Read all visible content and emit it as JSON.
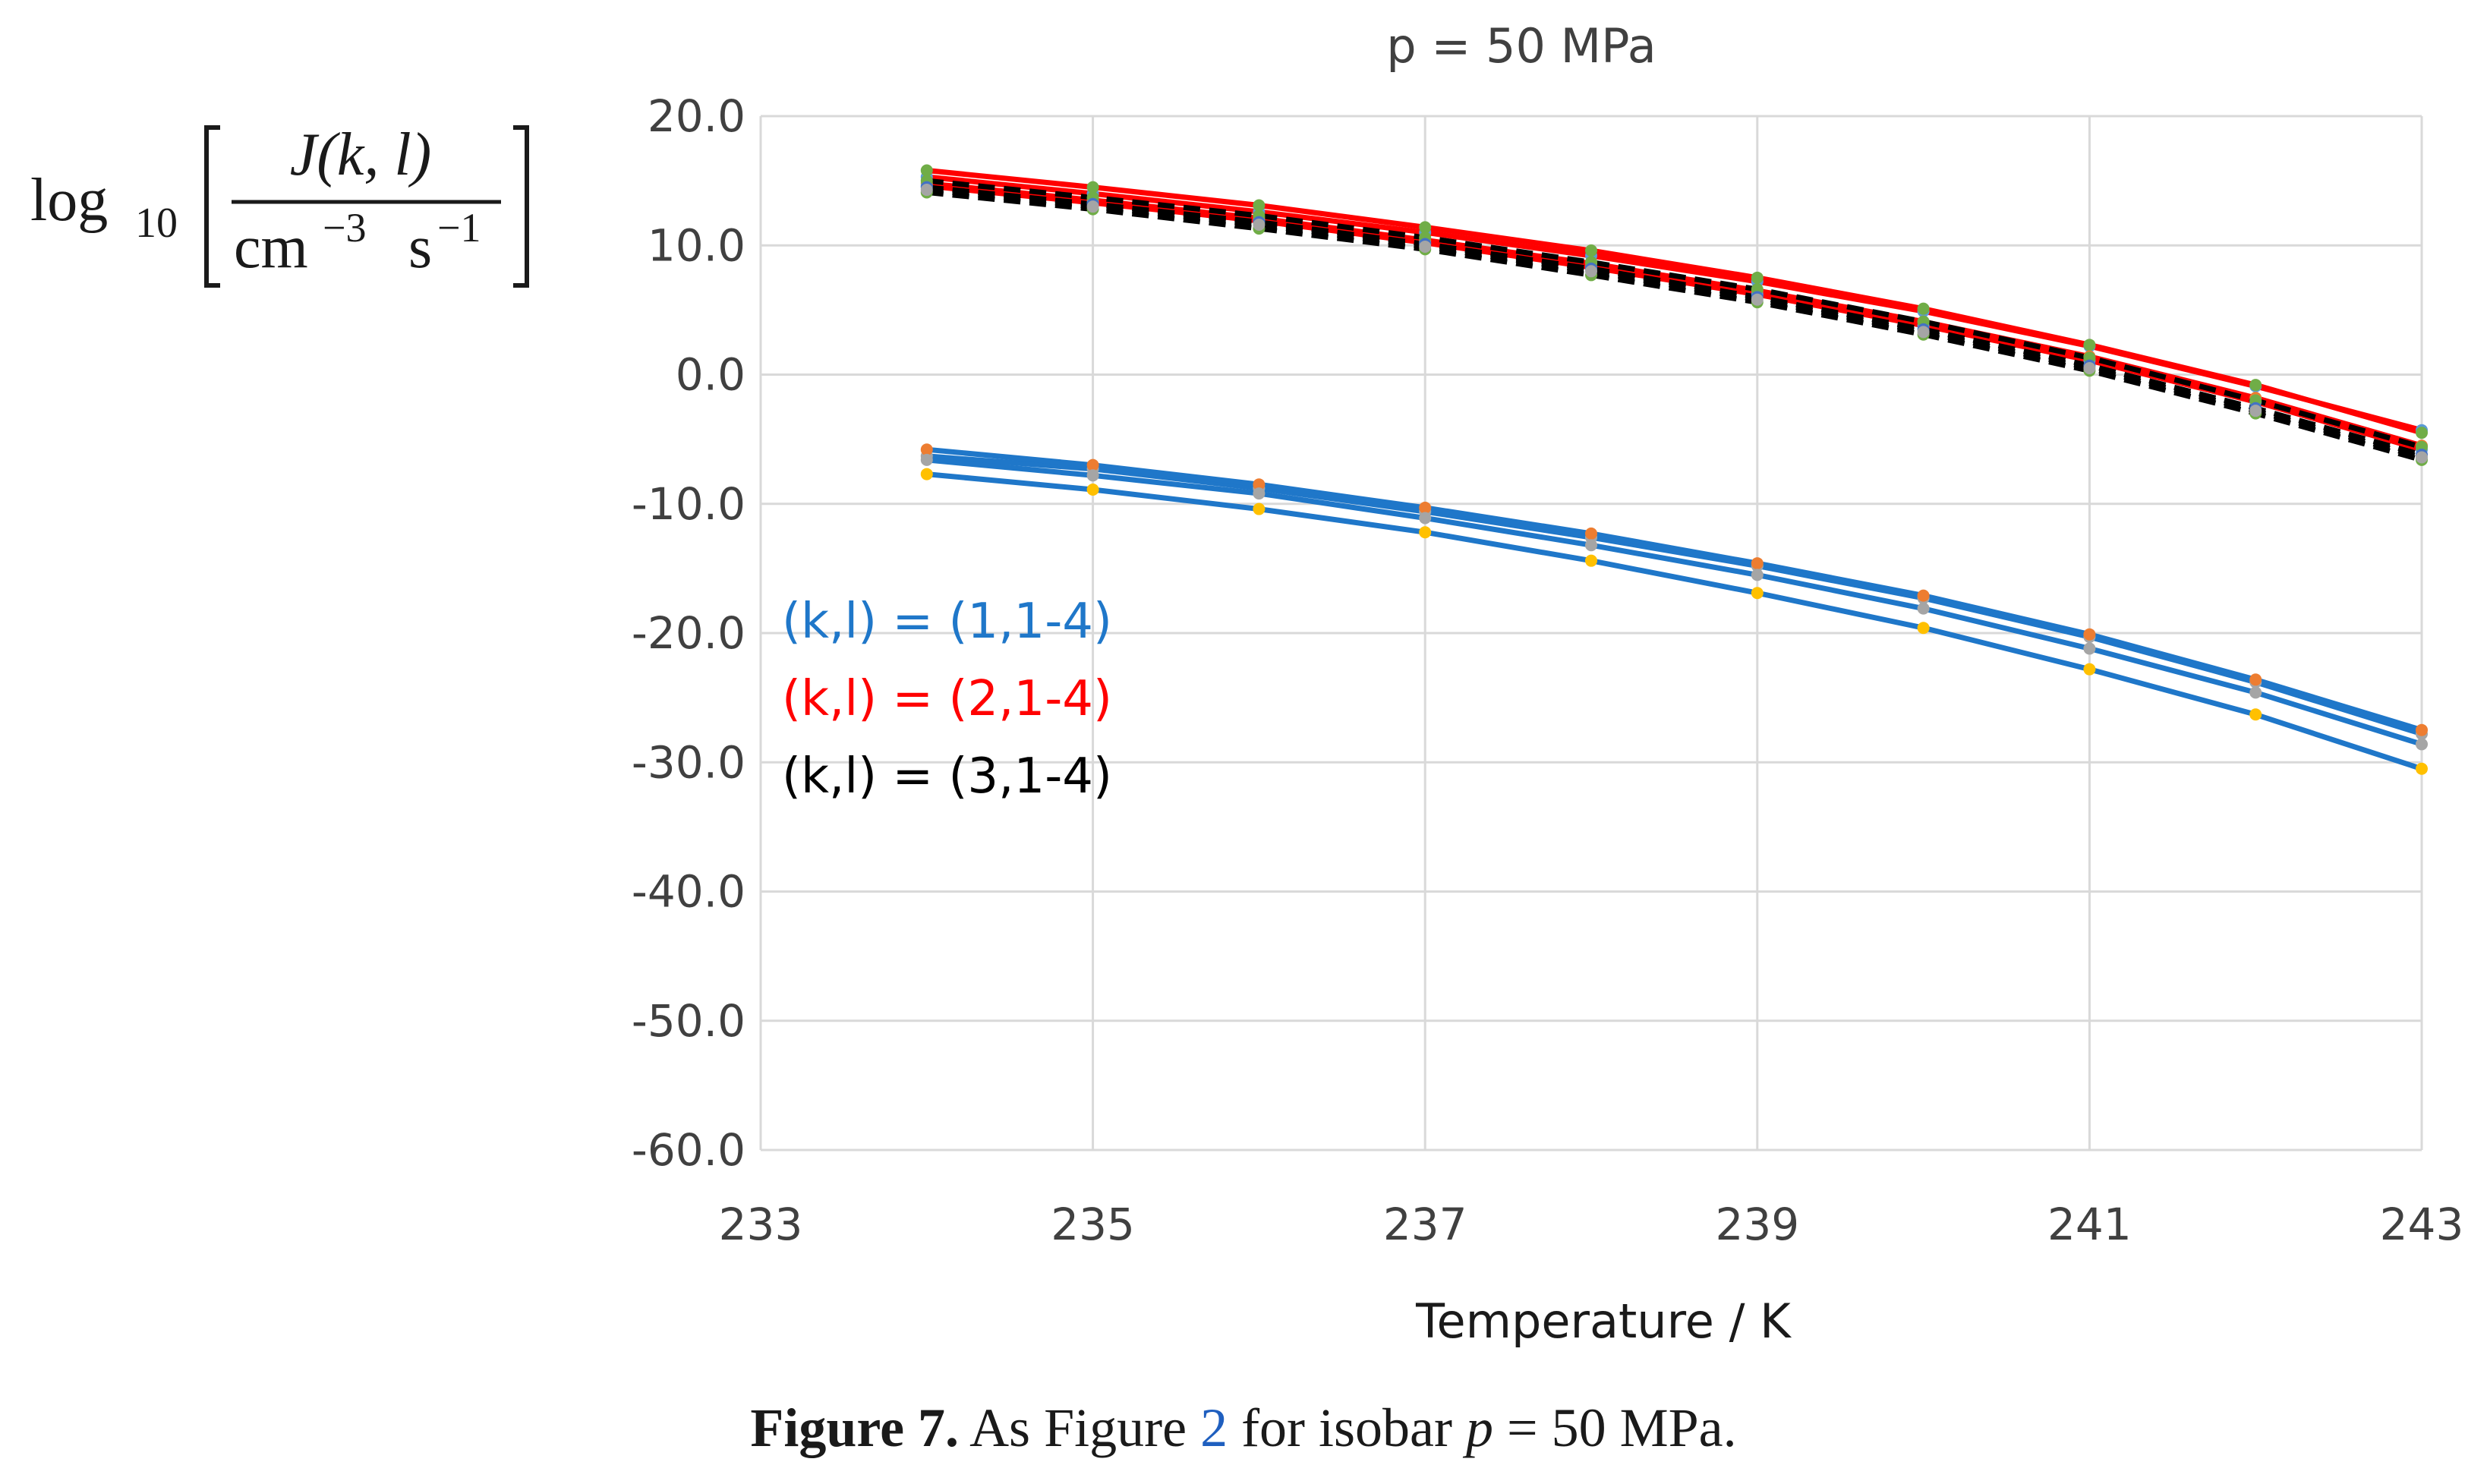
{
  "chart_data": {
    "type": "line",
    "title": "p = 50 MPa",
    "xlabel": "Temperature / K",
    "ylabel": {
      "prefix": "log",
      "sub": "10",
      "numerator": "J(k, l)",
      "denominator_a": "cm",
      "exp_a": "−3",
      "denominator_b": "s",
      "exp_b": "−1"
    },
    "xlim": [
      233,
      243
    ],
    "ylim": [
      -60,
      20
    ],
    "x_ticks": [
      "233",
      "235",
      "237",
      "239",
      "241",
      "243"
    ],
    "y_ticks": [
      "20.0",
      "10.0",
      "0.0",
      "-10.0",
      "-20.0",
      "-30.0",
      "-40.0",
      "-50.0",
      "-60.0"
    ],
    "x_tick_values": [
      233,
      235,
      237,
      239,
      241,
      243
    ],
    "y_tick_values": [
      20,
      10,
      0,
      -10,
      -20,
      -30,
      -40,
      -50,
      -60
    ],
    "x_gridlines": [
      233,
      235,
      237,
      239,
      241,
      243
    ],
    "grid": true,
    "x": [
      234,
      235,
      236,
      237,
      238,
      239,
      240,
      241,
      242,
      243
    ],
    "legend": [
      {
        "label": "(k,l) = (1,1-4)",
        "color": "#1f77c9"
      },
      {
        "label": "(k,l) = (2,1-4)",
        "color": "#ff0000"
      },
      {
        "label": "(k,l) = (3,1-4)",
        "color": "#000000"
      }
    ],
    "series": [
      {
        "name": "(1,1)",
        "group": 1,
        "style": "solid",
        "color": "#1f77c9",
        "marker_color": "#a5a5a5",
        "values": [
          -6.3,
          -7.3,
          -8.8,
          -10.6,
          -12.6,
          -14.8,
          -17.3,
          -20.3,
          -23.8,
          -27.8
        ]
      },
      {
        "name": "(1,2)",
        "group": 1,
        "style": "solid",
        "color": "#1f77c9",
        "marker_color": "#ed7d31",
        "values": [
          -5.8,
          -7.0,
          -8.5,
          -10.3,
          -12.3,
          -14.6,
          -17.1,
          -20.1,
          -23.6,
          -27.5
        ]
      },
      {
        "name": "(1,3)",
        "group": 1,
        "style": "solid",
        "color": "#1f77c9",
        "marker_color": "#a5a5a5",
        "values": [
          -6.6,
          -7.8,
          -9.2,
          -11.1,
          -13.2,
          -15.5,
          -18.1,
          -21.2,
          -24.6,
          -28.6
        ]
      },
      {
        "name": "(1,4)",
        "group": 1,
        "style": "solid",
        "color": "#1f77c9",
        "marker_color": "#ffc000",
        "values": [
          -7.7,
          -8.9,
          -10.4,
          -12.2,
          -14.4,
          -16.9,
          -19.6,
          -22.8,
          -26.3,
          -30.5
        ]
      },
      {
        "name": "(2,1)",
        "group": 2,
        "style": "solid",
        "color": "#ff0000",
        "marker_color": "#5b9bd5",
        "values": [
          15.3,
          14.0,
          12.6,
          11.0,
          9.2,
          7.2,
          4.9,
          2.2,
          -0.9,
          -4.3
        ]
      },
      {
        "name": "(2,2)",
        "group": 2,
        "style": "solid",
        "color": "#ff0000",
        "marker_color": "#70ad47",
        "values": [
          15.8,
          14.5,
          13.1,
          11.4,
          9.6,
          7.5,
          5.1,
          2.3,
          -0.8,
          -4.5
        ]
      },
      {
        "name": "(2,3)",
        "group": 2,
        "style": "solid",
        "color": "#ff0000",
        "marker_color": "#ed7d31",
        "values": [
          14.8,
          13.5,
          12.1,
          10.4,
          8.6,
          6.5,
          4.1,
          1.4,
          -1.8,
          -5.5
        ]
      },
      {
        "name": "(2,4)",
        "group": 2,
        "style": "solid",
        "color": "#ff0000",
        "marker_color": "#5b9bd5",
        "values": [
          14.6,
          13.3,
          11.9,
          10.2,
          8.3,
          6.2,
          3.8,
          1.1,
          -2.1,
          -5.8
        ]
      },
      {
        "name": "(3,1)",
        "group": 3,
        "style": "dashed",
        "color": "#000000",
        "marker_color": "#70ad47",
        "values": [
          15.0,
          13.7,
          12.3,
          10.6,
          8.7,
          6.6,
          4.1,
          1.3,
          -2.0,
          -5.6
        ]
      },
      {
        "name": "(3,2)",
        "group": 3,
        "style": "dashed",
        "color": "#000000",
        "marker_color": "#4472c4",
        "values": [
          14.5,
          13.2,
          11.8,
          10.1,
          8.2,
          6.0,
          3.5,
          0.7,
          -2.6,
          -6.2
        ]
      },
      {
        "name": "(3,3)",
        "group": 3,
        "style": "dashed",
        "color": "#000000",
        "marker_color": "#70ad47",
        "values": [
          14.1,
          12.8,
          11.3,
          9.7,
          7.7,
          5.6,
          3.1,
          0.3,
          -3.0,
          -6.6
        ]
      },
      {
        "name": "(3,4)",
        "group": 3,
        "style": "dashed",
        "color": "#000000",
        "marker_color": "#a5a5a5",
        "values": [
          14.3,
          13.0,
          11.6,
          9.9,
          8.0,
          5.8,
          3.3,
          0.5,
          -2.8,
          -6.4
        ]
      }
    ]
  },
  "caption": {
    "label": "Figure 7.",
    "text_a": "As Figure",
    "ref": "2",
    "text_b": "for isobar",
    "var": "p",
    "eq": "= 50 MPa."
  },
  "colors": {
    "grid": "#d9d9d9",
    "axis": "#bfbfbf",
    "blue": "#1f77c9",
    "red": "#ff0000",
    "black": "#000000"
  }
}
